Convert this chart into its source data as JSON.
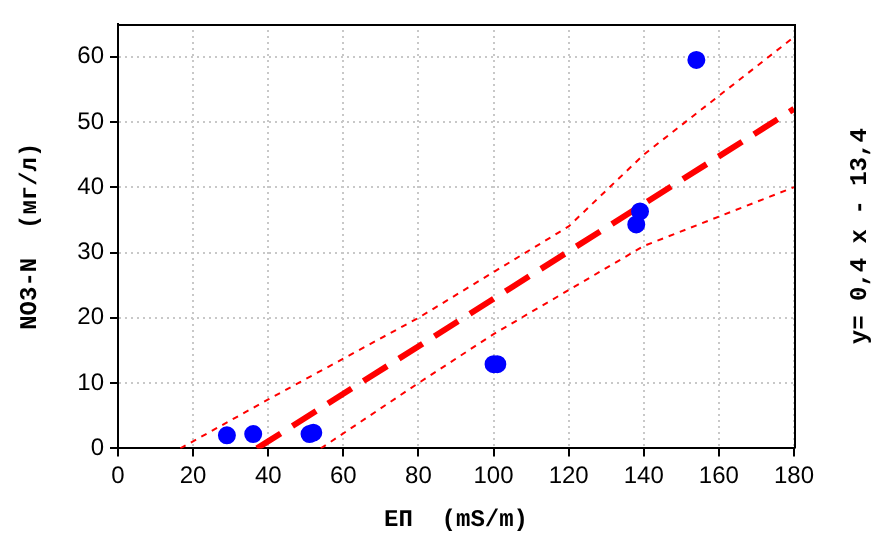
{
  "chart_data": {
    "type": "scatter",
    "xlabel": "ЕП  (mS/m)",
    "ylabel": "NO3-N  (мг/л)",
    "annotations": [
      "y= 0,4 x - 13,4"
    ],
    "x": [
      29,
      36,
      51,
      52,
      100,
      101,
      138,
      139,
      154
    ],
    "series": [
      {
        "color": "#0000ff",
        "marker": "circle",
        "values": [
          2,
          2.2,
          2.2,
          2.4,
          12.9,
          12.9,
          34.3,
          36.3,
          59.5
        ]
      },
      {
        "type": "line",
        "color": "#ff0000",
        "line_style": "dashed",
        "marker": "none",
        "x": [
          37,
          180
        ],
        "values": [
          0,
          52
        ]
      },
      {
        "type": "line",
        "color": "#ff0000",
        "line_style": "dotted",
        "marker": "none",
        "x": [
          16.6,
          40,
          80,
          120,
          140,
          160,
          180
        ],
        "values": [
          0,
          7.5,
          20,
          34,
          45,
          54,
          63
        ]
      },
      {
        "type": "line",
        "color": "#ff0000",
        "line_style": "dotted",
        "marker": "none",
        "x": [
          54,
          80,
          100,
          140,
          160,
          180
        ],
        "values": [
          0,
          10,
          17.5,
          31,
          35.5,
          40
        ]
      }
    ],
    "xlim": [
      0,
      180
    ],
    "xticks": [
      0,
      20,
      40,
      60,
      80,
      100,
      120,
      140,
      160,
      180
    ],
    "ylim": [
      0,
      65
    ],
    "yticks": [
      0,
      10,
      20,
      30,
      40,
      50,
      60
    ],
    "grid": true,
    "legend": false
  }
}
